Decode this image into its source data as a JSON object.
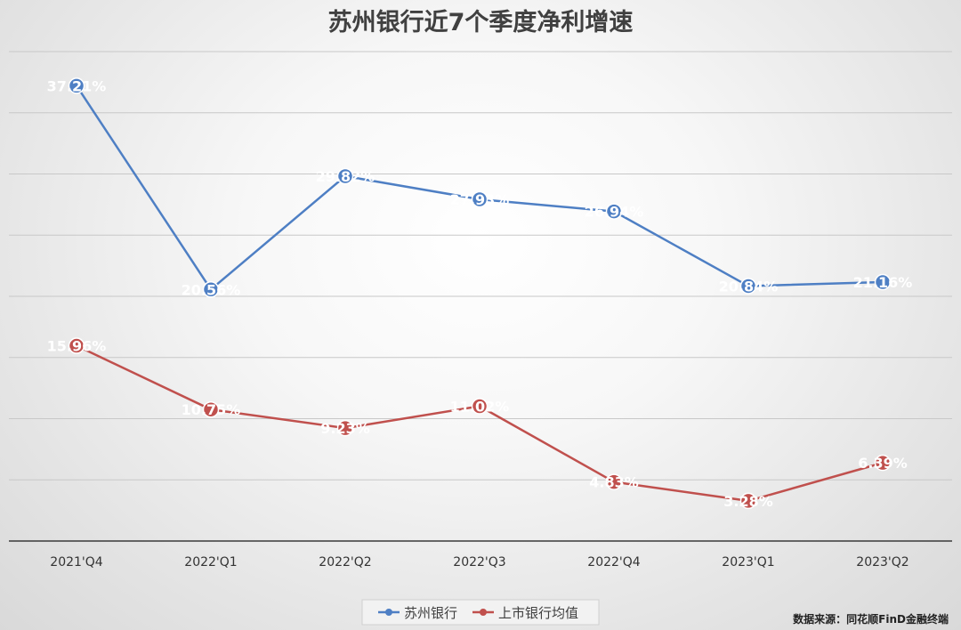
{
  "chart_data": {
    "type": "line",
    "title": "苏州银行近7个季度净利增速",
    "categories": [
      "2021'Q4",
      "2022'Q1",
      "2022'Q2",
      "2022'Q3",
      "2022'Q4",
      "2023'Q1",
      "2023'Q2"
    ],
    "ylim": [
      0,
      40
    ],
    "grid": true,
    "legend": "bottom",
    "series": [
      {
        "name": "苏州银行",
        "color": "#4e7fc4",
        "values": [
          37.21,
          20.56,
          29.82,
          27.93,
          26.94,
          20.84,
          21.16
        ],
        "labels": [
          "37.21%",
          "20.56%",
          "29.82%",
          "27.93%",
          "26.94%",
          "20.84%",
          "21.16%"
        ]
      },
      {
        "name": "上市银行均值",
        "color": "#c0504d",
        "values": [
          15.96,
          10.75,
          9.23,
          11.02,
          4.83,
          3.28,
          6.39
        ],
        "labels": [
          "15.96%",
          "10.75%",
          "9.23%",
          "11.02%",
          "4.83%",
          "3.28%",
          "6.39%"
        ]
      }
    ]
  },
  "source": "数据来源：同花顺FinD金融终端"
}
